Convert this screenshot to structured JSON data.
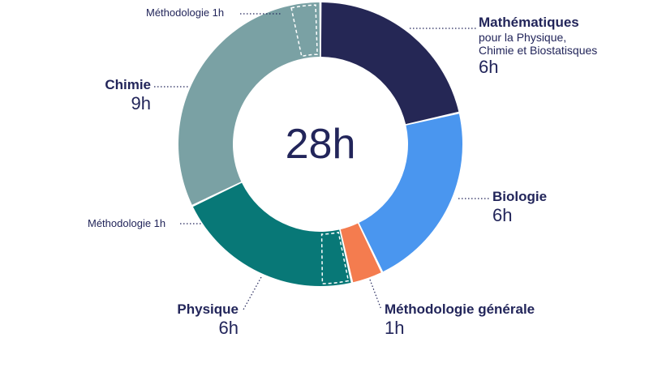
{
  "chart_data": {
    "type": "pie",
    "total": "28h",
    "segments": [
      {
        "name": "Mathématiques",
        "subtitle": [
          "pour la Physique,",
          "Chimie et Biostatisques"
        ],
        "value": 6,
        "value_label": "6h",
        "color": "#252755"
      },
      {
        "name": "Biologie",
        "value": 6,
        "value_label": "6h",
        "color": "#4a96ef"
      },
      {
        "name": "Méthodologie générale",
        "value": 1,
        "value_label": "1h",
        "color": "#f47c4f"
      },
      {
        "name": "Physique",
        "value": 6,
        "value_label": "6h",
        "color": "#087877",
        "sub_segment": {
          "name": "Méthodologie 1h",
          "value": 1
        }
      },
      {
        "name": "Chimie",
        "value": 9,
        "value_label": "9h",
        "color": "#7aa1a4",
        "sub_segment": {
          "name": "Méthodologie 1h",
          "value": 1
        }
      }
    ]
  }
}
